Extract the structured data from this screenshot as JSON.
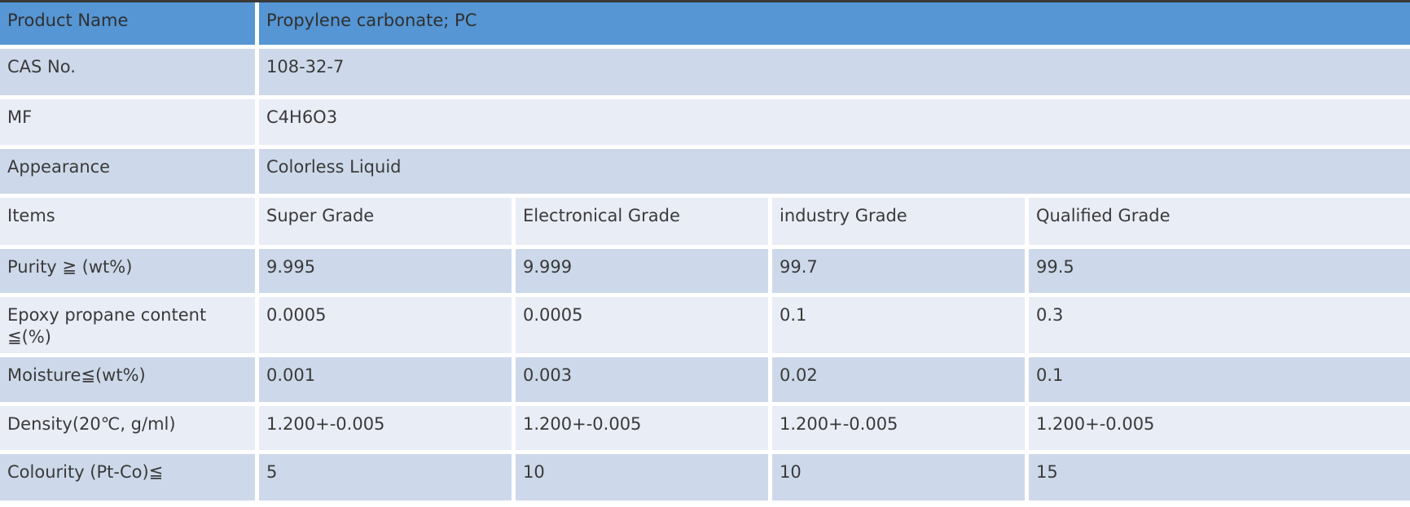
{
  "table": {
    "title_semantics": "product-specification-table",
    "colors": {
      "header_blue": "#5696d4",
      "row_dark": "#cdd9ea",
      "row_light": "#e9edf6",
      "top_border": "#3a3a3a",
      "text": "#3a3a3a",
      "gap_white": "#ffffff"
    },
    "info_rows": [
      {
        "label": "Product Name",
        "value": "Propylene carbonate; PC"
      },
      {
        "label": "CAS No.",
        "value": "108-32-7"
      },
      {
        "label": "MF",
        "value": "C4H6O3"
      },
      {
        "label": "Appearance",
        "value": "Colorless Liquid"
      }
    ],
    "items_row": {
      "label": "Items",
      "columns": [
        "Super Grade",
        "Electronical Grade",
        "industry Grade",
        "Qualified Grade"
      ]
    },
    "spec_rows": [
      {
        "label": "Purity ≧ (wt%)",
        "values": [
          "9.995",
          "9.999",
          "99.7",
          "99.5"
        ]
      },
      {
        "label": "Epoxy propane content ≦(%)",
        "values": [
          "0.0005",
          "0.0005",
          "0.1",
          "0.3"
        ]
      },
      {
        "label": "Moisture≦(wt%)",
        "values": [
          "0.001",
          "0.003",
          "0.02",
          "0.1"
        ]
      },
      {
        "label": "Density(20℃, g/ml)",
        "values": [
          "1.200+-0.005",
          "1.200+-0.005",
          "1.200+-0.005",
          "1.200+-0.005"
        ]
      },
      {
        "label": "Colourity (Pt-Co)≦",
        "values": [
          "5",
          "10",
          "10",
          "15"
        ]
      }
    ]
  }
}
